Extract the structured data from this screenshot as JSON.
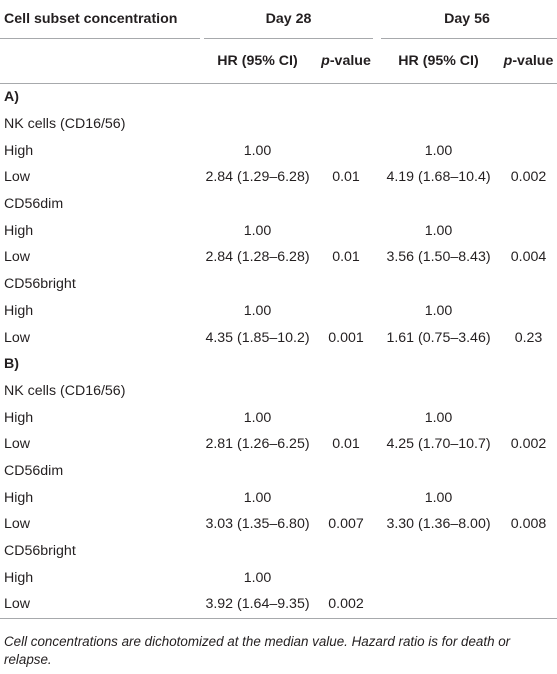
{
  "header": {
    "col_label": "Cell subset concentration",
    "day28": "Day 28",
    "day56": "Day 56",
    "hr": "HR (95% CI)",
    "p_prefix": "p",
    "p_suffix": "-value"
  },
  "rows": [
    {
      "label": "A)",
      "type": "section"
    },
    {
      "label": "NK cells (CD16/56)",
      "type": "group"
    },
    {
      "label": "High",
      "type": "data",
      "hr28": "1.00",
      "p28": "",
      "hr56": "1.00",
      "p56": ""
    },
    {
      "label": "Low",
      "type": "data",
      "hr28": "2.84 (1.29–6.28)",
      "p28": "0.01",
      "hr56": "4.19 (1.68–10.4)",
      "p56": "0.002"
    },
    {
      "label": "CD56dim",
      "type": "group"
    },
    {
      "label": "High",
      "type": "data",
      "hr28": "1.00",
      "p28": "",
      "hr56": "1.00",
      "p56": ""
    },
    {
      "label": "Low",
      "type": "data",
      "hr28": "2.84 (1.28–6.28)",
      "p28": "0.01",
      "hr56": "3.56 (1.50–8.43)",
      "p56": "0.004"
    },
    {
      "label": "CD56bright",
      "type": "group"
    },
    {
      "label": "High",
      "type": "data",
      "hr28": "1.00",
      "p28": "",
      "hr56": "1.00",
      "p56": ""
    },
    {
      "label": "Low",
      "type": "data",
      "hr28": "4.35 (1.85–10.2)",
      "p28": "0.001",
      "hr56": "1.61 (0.75–3.46)",
      "p56": "0.23"
    },
    {
      "label": "B)",
      "type": "section"
    },
    {
      "label": "NK cells (CD16/56)",
      "type": "group"
    },
    {
      "label": "High",
      "type": "data",
      "hr28": "1.00",
      "p28": "",
      "hr56": "1.00",
      "p56": ""
    },
    {
      "label": "Low",
      "type": "data",
      "hr28": "2.81 (1.26–6.25)",
      "p28": "0.01",
      "hr56": "4.25 (1.70–10.7)",
      "p56": "0.002"
    },
    {
      "label": "CD56dim",
      "type": "group"
    },
    {
      "label": "High",
      "type": "data",
      "hr28": "1.00",
      "p28": "",
      "hr56": "1.00",
      "p56": ""
    },
    {
      "label": "Low",
      "type": "data",
      "hr28": "3.03 (1.35–6.80)",
      "p28": "0.007",
      "hr56": "3.30 (1.36–8.00)",
      "p56": "0.008"
    },
    {
      "label": "CD56bright",
      "type": "group"
    },
    {
      "label": "High",
      "type": "data",
      "hr28": "1.00",
      "p28": "",
      "hr56": "",
      "p56": ""
    },
    {
      "label": "Low",
      "type": "data",
      "hr28": "3.92 (1.64–9.35)",
      "p28": "0.002",
      "hr56": "",
      "p56": ""
    }
  ],
  "footnote": "Cell concentrations are dichotomized at the median value. Hazard ratio is for death or relapse."
}
